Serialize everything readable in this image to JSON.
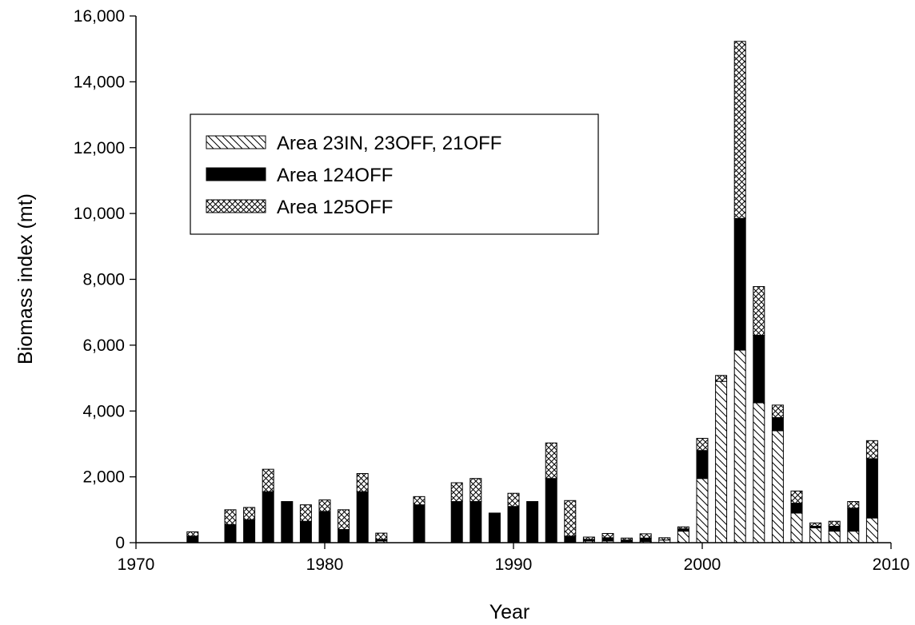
{
  "chart_data": {
    "type": "bar",
    "stacked": true,
    "xlabel": "Year",
    "ylabel": "Biomass index (mt)",
    "xlim": [
      1970,
      2010
    ],
    "ylim": [
      0,
      16000
    ],
    "x_ticks": [
      1970,
      1980,
      1990,
      2000,
      2010
    ],
    "y_ticks": [
      0,
      2000,
      4000,
      6000,
      8000,
      10000,
      12000,
      14000,
      16000
    ],
    "y_tick_labels": [
      "0",
      "2,000",
      "4,000",
      "6,000",
      "8,000",
      "10,000",
      "12,000",
      "14,000",
      "16,000"
    ],
    "legend_position": "upper-left",
    "x": [
      1973,
      1975,
      1976,
      1977,
      1978,
      1979,
      1980,
      1981,
      1982,
      1983,
      1985,
      1987,
      1988,
      1989,
      1990,
      1991,
      1992,
      1993,
      1994,
      1995,
      1996,
      1997,
      1998,
      1999,
      2000,
      2001,
      2002,
      2003,
      2004,
      2005,
      2006,
      2007,
      2008,
      2009
    ],
    "series": [
      {
        "name": "Area 23IN, 23OFF, 21OFF",
        "pattern": "diagonal-hatch",
        "values": [
          0,
          0,
          0,
          0,
          0,
          0,
          0,
          0,
          0,
          50,
          0,
          0,
          0,
          0,
          0,
          0,
          0,
          0,
          50,
          50,
          30,
          40,
          80,
          350,
          1950,
          4900,
          5850,
          4250,
          3400,
          900,
          450,
          350,
          350,
          750
        ]
      },
      {
        "name": "Area 124OFF",
        "pattern": "solid-black",
        "values": [
          200,
          550,
          700,
          1550,
          1250,
          650,
          950,
          400,
          1550,
          50,
          1150,
          1250,
          1250,
          900,
          1100,
          1250,
          1950,
          200,
          50,
          100,
          50,
          100,
          0,
          70,
          850,
          0,
          4000,
          2050,
          400,
          300,
          50,
          150,
          700,
          1800
        ]
      },
      {
        "name": "Area 125OFF",
        "pattern": "crosshatch",
        "values": [
          130,
          450,
          370,
          680,
          0,
          500,
          350,
          600,
          550,
          190,
          250,
          570,
          700,
          0,
          400,
          0,
          1080,
          1080,
          70,
          130,
          60,
          130,
          70,
          60,
          370,
          180,
          5380,
          1480,
          380,
          370,
          100,
          150,
          200,
          550
        ]
      }
    ]
  }
}
